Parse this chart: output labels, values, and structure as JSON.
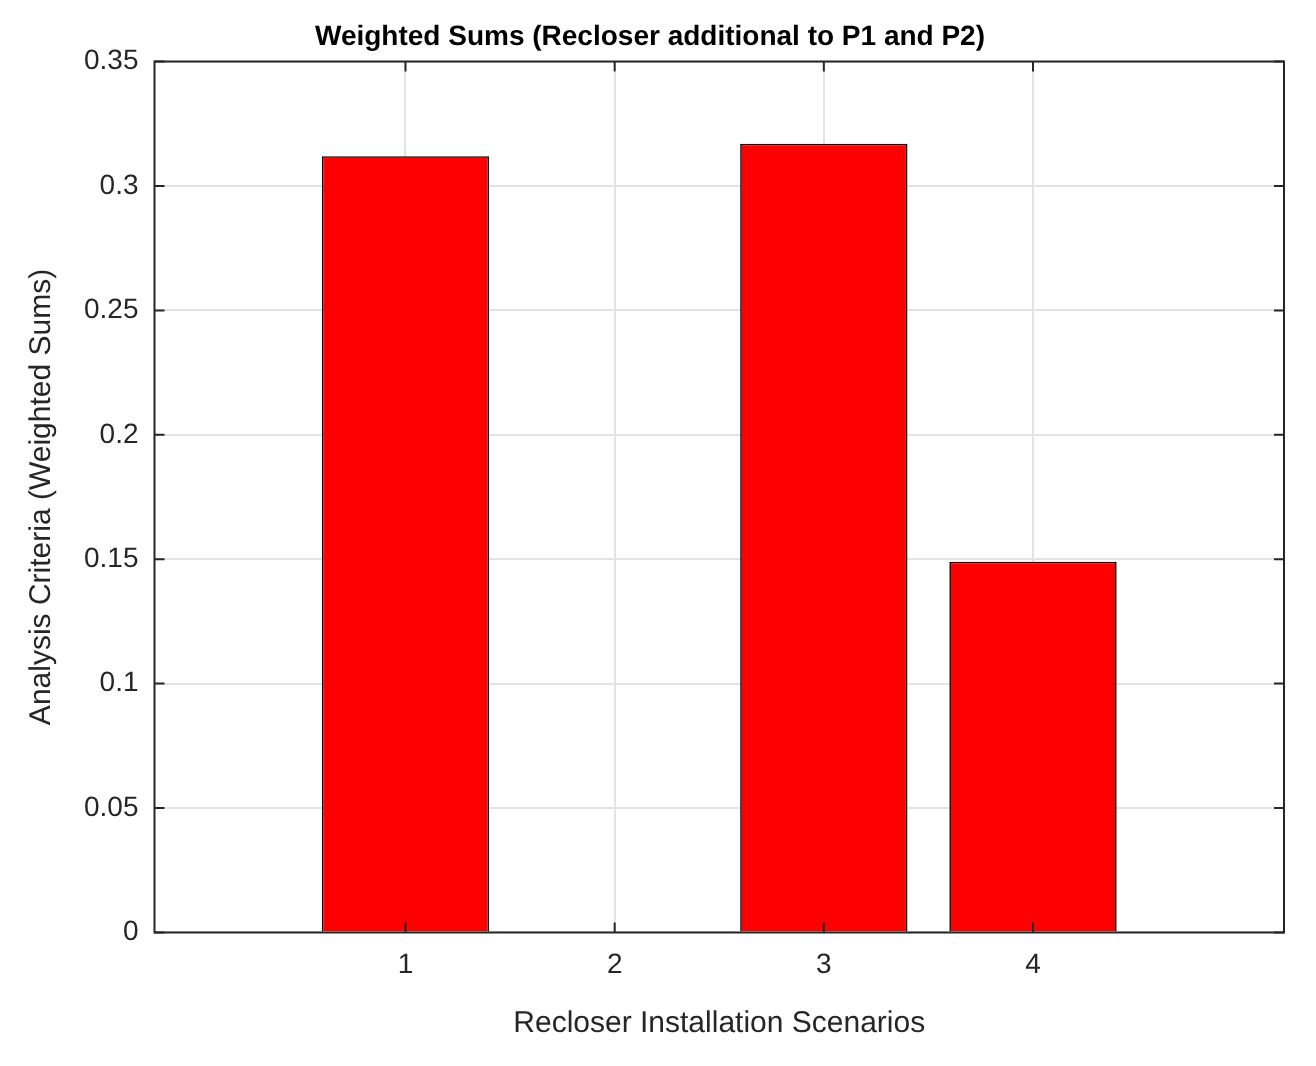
{
  "chart_data": {
    "type": "bar",
    "title": "Weighted Sums (Recloser additional to P1 and P2)",
    "xlabel": "Recloser Installation Scenarios",
    "ylabel": "Analysis Criteria (Weighted Sums)",
    "x": [
      1,
      2,
      3,
      4
    ],
    "values": [
      0.312,
      0,
      0.317,
      0.149
    ],
    "color": "#ff0000",
    "xlim": [
      -0.2,
      5.2
    ],
    "xticks": [
      1,
      2,
      3,
      4
    ],
    "ylim": [
      0,
      0.35
    ],
    "yticks": [
      0,
      0.05,
      0.1,
      0.15,
      0.2,
      0.25,
      0.3,
      0.35
    ],
    "grid": true
  }
}
